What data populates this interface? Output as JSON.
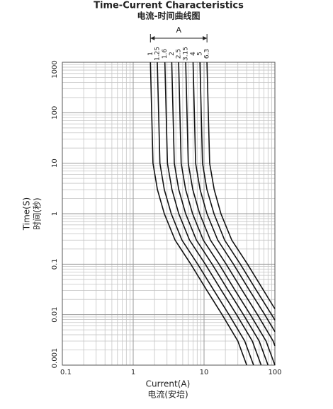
{
  "chart_data": {
    "type": "line",
    "title": "Time-Current Characteristics",
    "subtitle": "电流-时间曲线图",
    "x_label": "Current(A)",
    "x_label_2": "电流(安培)",
    "y_label": "Time(S)",
    "y_label_2": "时间(秒)",
    "annotation": "A",
    "xscale": "log",
    "yscale": "log",
    "grid": true,
    "minor_grid": true,
    "xlim": [
      0.1,
      100
    ],
    "xticks": [
      0.1,
      1,
      10,
      100
    ],
    "ylim": [
      0.001,
      1000
    ],
    "yticks": [
      0.001,
      0.01,
      0.1,
      1,
      10,
      100,
      1000
    ],
    "series": [
      {
        "name": "1",
        "color": "#111111",
        "x": [
          1.75,
          1.9,
          2.2,
          2.75,
          3.9,
          6.5,
          11,
          18,
          30,
          40
        ],
        "values": [
          1000,
          10,
          3,
          1,
          0.3,
          0.1,
          0.03,
          0.01,
          0.003,
          0.001
        ]
      },
      {
        "name": "1.25",
        "color": "#111111",
        "x": [
          2.19,
          2.38,
          2.75,
          3.44,
          4.88,
          8.13,
          13.8,
          22.5,
          37.5,
          50
        ],
        "values": [
          1000,
          10,
          3,
          1,
          0.3,
          0.1,
          0.03,
          0.01,
          0.003,
          0.001
        ]
      },
      {
        "name": "1.6",
        "color": "#111111",
        "x": [
          2.8,
          3.04,
          3.52,
          4.4,
          6.24,
          10.4,
          17.6,
          28.8,
          48,
          64
        ],
        "values": [
          1000,
          10,
          3,
          1,
          0.3,
          0.1,
          0.03,
          0.01,
          0.003,
          0.001
        ]
      },
      {
        "name": "2",
        "color": "#111111",
        "x": [
          3.5,
          3.8,
          4.4,
          5.5,
          7.8,
          13,
          22,
          36,
          60,
          80
        ],
        "values": [
          1000,
          10,
          3,
          1,
          0.3,
          0.1,
          0.03,
          0.01,
          0.003,
          0.001
        ]
      },
      {
        "name": "2.5",
        "color": "#111111",
        "x": [
          4.38,
          4.75,
          5.5,
          6.88,
          9.75,
          16.3,
          27.5,
          45,
          75,
          100
        ],
        "values": [
          1000,
          10,
          3,
          1,
          0.3,
          0.1,
          0.03,
          0.01,
          0.003,
          0.001
        ]
      },
      {
        "name": "3.15",
        "color": "#111111",
        "x": [
          5.51,
          5.99,
          6.93,
          8.66,
          12.3,
          20.5,
          34.7,
          56.7,
          94.5,
          100
        ],
        "values": [
          1000,
          10,
          3,
          1,
          0.3,
          0.1,
          0.03,
          0.01,
          0.003,
          0.0024
        ]
      },
      {
        "name": "4",
        "color": "#111111",
        "x": [
          7,
          7.6,
          8.8,
          11,
          15.6,
          26,
          44,
          72,
          100
        ],
        "values": [
          1000,
          10,
          3,
          1,
          0.3,
          0.1,
          0.03,
          0.01,
          0.0046
        ]
      },
      {
        "name": "5",
        "color": "#111111",
        "x": [
          8.75,
          9.5,
          11,
          13.8,
          19.5,
          32.5,
          55,
          90,
          100
        ],
        "values": [
          1000,
          10,
          3,
          1,
          0.3,
          0.1,
          0.03,
          0.01,
          0.0078
        ]
      },
      {
        "name": "6.3",
        "color": "#111111",
        "x": [
          11,
          12,
          13.9,
          17.3,
          24.6,
          41,
          69.3,
          100
        ],
        "values": [
          1000,
          10,
          3,
          1,
          0.3,
          0.1,
          0.03,
          0.013
        ]
      }
    ]
  }
}
